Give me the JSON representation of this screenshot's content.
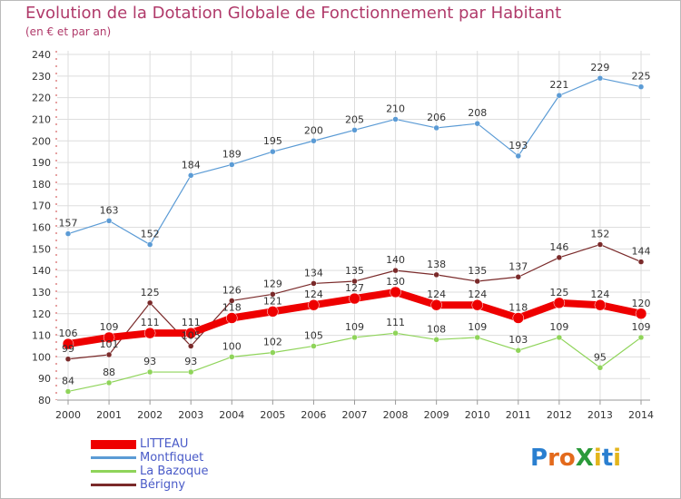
{
  "header": {
    "title": "Evolution de la Dotation Globale de Fonctionnement par Habitant",
    "subtitle": "(en € et par an)"
  },
  "logo": {
    "text": "ProXiti",
    "letters": [
      "P",
      "r",
      "o",
      "X",
      "i",
      "t",
      "i"
    ],
    "colors": [
      "#2a7fd0",
      "#e36a1c",
      "#e36a1c",
      "#2a9a3a",
      "#e3b51c",
      "#2a7fd0",
      "#e3b51c"
    ]
  },
  "colors": {
    "grid": "#dddddd",
    "axis": "#cc4444"
  },
  "chart_data": {
    "type": "line",
    "x": [
      "2000",
      "2001",
      "2002",
      "2003",
      "2004",
      "2005",
      "2006",
      "2007",
      "2008",
      "2009",
      "2010",
      "2011",
      "2012",
      "2013",
      "2014"
    ],
    "ylim": [
      80,
      240
    ],
    "yticks": [
      80,
      90,
      100,
      110,
      120,
      130,
      140,
      150,
      160,
      170,
      180,
      190,
      200,
      210,
      220,
      230,
      240
    ],
    "grid": true,
    "legend_position": "bottom-left",
    "series": [
      {
        "name": "Montfiquet",
        "color": "#5b9bd5",
        "values": [
          157,
          163,
          152,
          184,
          189,
          195,
          200,
          205,
          210,
          206,
          208,
          193,
          221,
          229,
          225
        ]
      },
      {
        "name": "La Bazoque",
        "color": "#8fd45a",
        "values": [
          84,
          88,
          93,
          93,
          100,
          102,
          105,
          109,
          111,
          108,
          109,
          103,
          109,
          95,
          109
        ]
      },
      {
        "name": "Bérigny",
        "color": "#7a2a2a",
        "values": [
          99,
          101,
          125,
          105,
          126,
          129,
          134,
          135,
          140,
          138,
          135,
          137,
          146,
          152,
          144
        ]
      },
      {
        "name": "LITTEAU",
        "color": "#ee0000",
        "values": [
          106,
          109,
          111,
          111,
          118,
          121,
          124,
          127,
          130,
          124,
          124,
          118,
          125,
          124,
          120
        ]
      }
    ],
    "legend_order": [
      "LITTEAU",
      "Montfiquet",
      "La Bazoque",
      "Bérigny"
    ]
  }
}
